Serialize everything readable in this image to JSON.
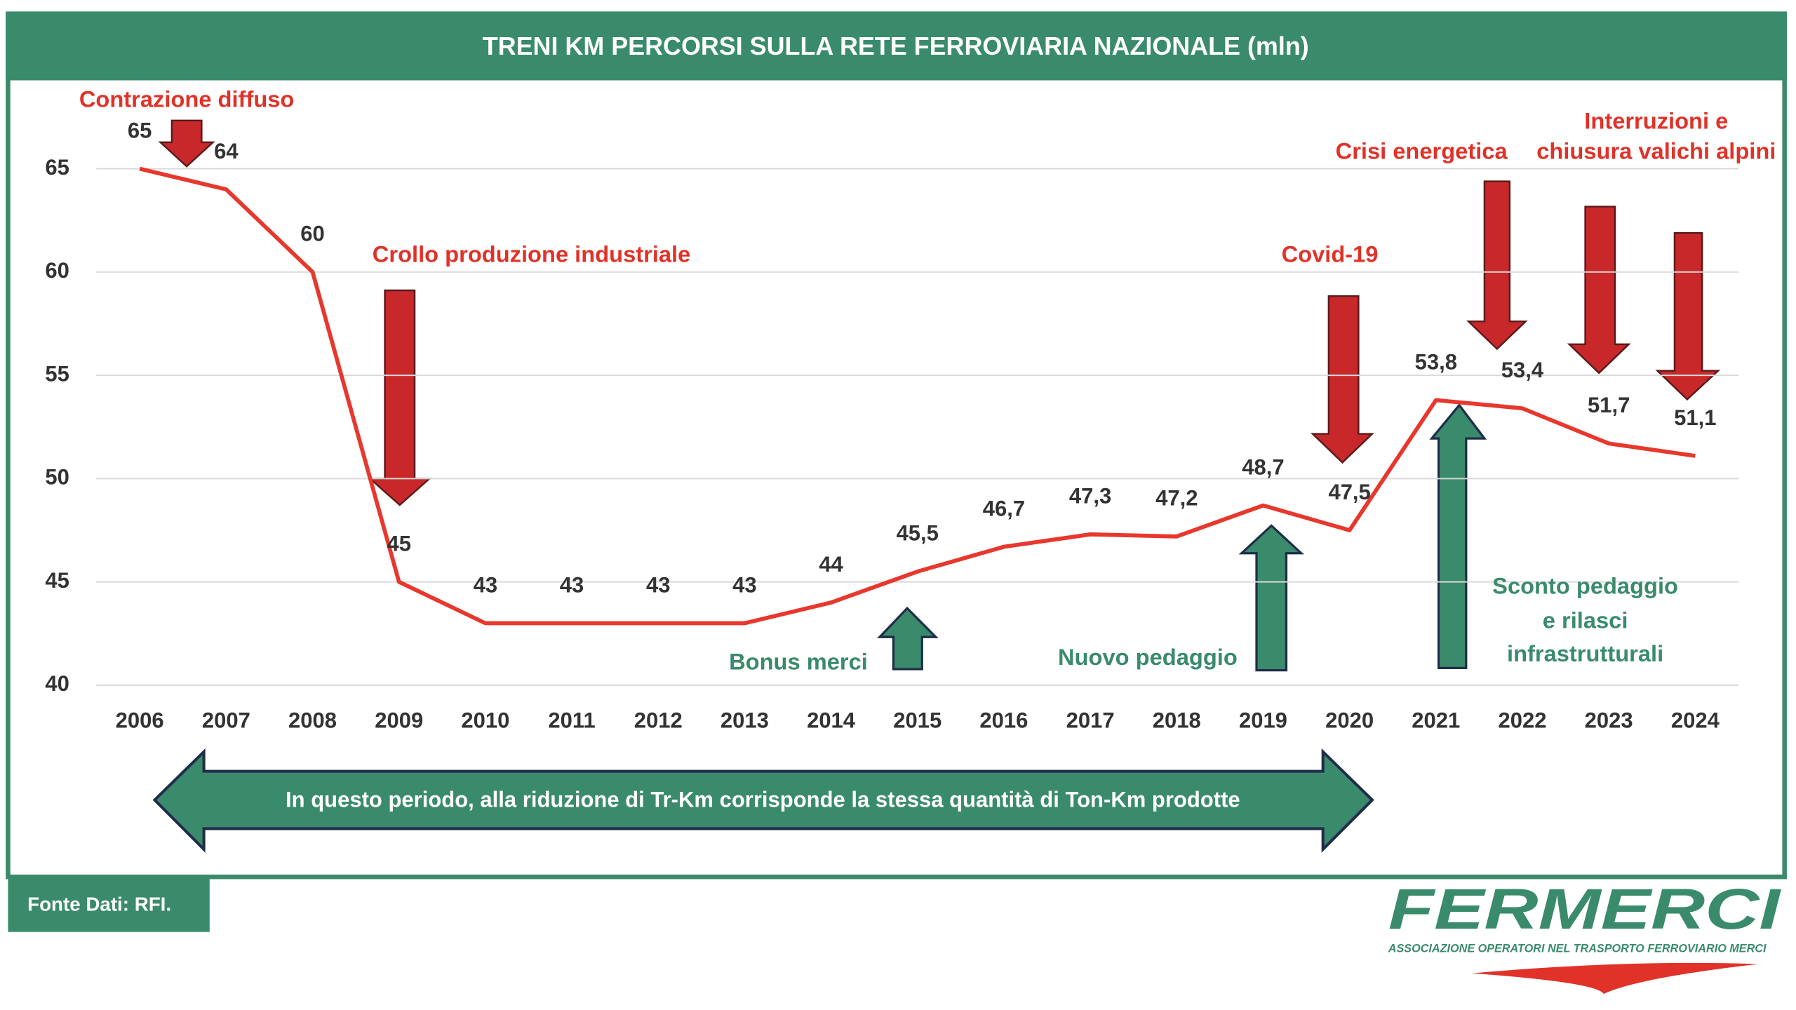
{
  "chart_data": {
    "type": "line",
    "title": "TRENI KM PERCORSI SULLA RETE FERROVIARIA NAZIONALE (mln)",
    "x": [
      2006,
      2007,
      2008,
      2009,
      2010,
      2011,
      2012,
      2013,
      2014,
      2015,
      2016,
      2017,
      2018,
      2019,
      2020,
      2021,
      2022,
      2023,
      2024
    ],
    "xlim": [
      2006,
      2024
    ],
    "xticks": [
      2006,
      2007,
      2008,
      2009,
      2010,
      2011,
      2012,
      2013,
      2014,
      2015,
      2016,
      2017,
      2018,
      2019,
      2020,
      2021,
      2022,
      2023,
      2024
    ],
    "values": [
      65,
      64,
      60,
      45,
      43,
      43,
      43,
      43,
      44,
      45.5,
      46.7,
      47.3,
      47.2,
      48.7,
      47.5,
      53.8,
      53.4,
      51.7,
      51.1
    ],
    "value_labels": [
      "65",
      "64",
      "60",
      "45",
      "43",
      "43",
      "43",
      "43",
      "44",
      "45,5",
      "46,7",
      "47,3",
      "47,2",
      "48,7",
      "47,5",
      "53,8",
      "53,4",
      "51,7",
      "51,1"
    ],
    "color": "#e8372c",
    "ylim": [
      40,
      65
    ],
    "yticks": [
      40,
      45,
      50,
      55,
      60,
      65
    ],
    "grid": true,
    "annotations": [
      {
        "lines": [
          "Contrazione diffuso"
        ],
        "color": "#e03228"
      },
      {
        "lines": [
          "Crollo produzione industriale"
        ],
        "color": "#e03228"
      },
      {
        "lines": [
          "Covid-19"
        ],
        "color": "#e03228"
      },
      {
        "lines": [
          "Crisi energetica"
        ],
        "color": "#e03228"
      },
      {
        "lines": [
          "Interruzioni e",
          "chiusura  valichi alpini"
        ],
        "color": "#e03228"
      },
      {
        "lines": [
          "Bonus merci"
        ],
        "color": "#3a8b6b"
      },
      {
        "lines": [
          "Nuovo pedaggio"
        ],
        "color": "#3a8b6b"
      },
      {
        "lines": [
          "Sconto pedaggio",
          "e rilasci",
          "infrastrutturali"
        ],
        "color": "#3a8b6b"
      }
    ],
    "banner": "In questo periodo, alla riduzione di Tr-Km corrisponde la stessa quantità di Ton-Km prodotte"
  },
  "footer": {
    "source": "Fonte Dati: RFI.",
    "logo": {
      "name": "FERMERCI",
      "tagline": "ASSOCIAZIONE OPERATORI NEL TRASPORTO FERROVIARIO MERCI"
    }
  }
}
